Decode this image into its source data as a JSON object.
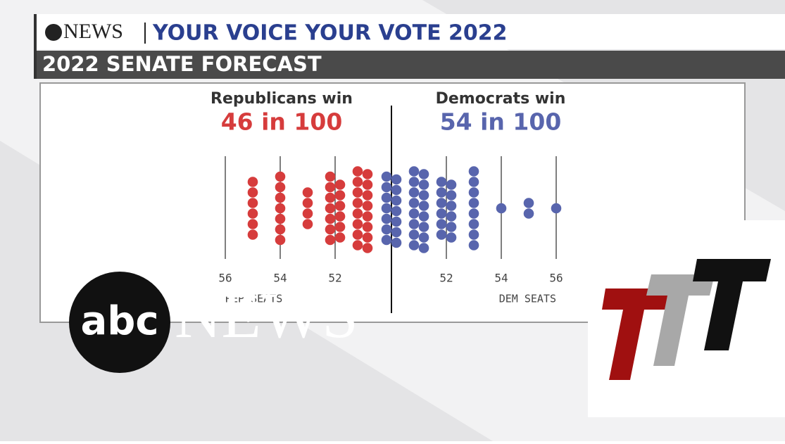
{
  "header": {
    "brand": "NEWS",
    "banner": "YOUR VOICE YOUR VOTE 2022",
    "subtitle": "2022 SENATE FORECAST"
  },
  "chart_data": {
    "type": "dotplot",
    "titles": [
      {
        "label": "Republicans win",
        "value": "46 in 100"
      },
      {
        "label": "Democrats win",
        "value": "54 in 100"
      }
    ],
    "categories": [
      "56",
      null,
      "54",
      null,
      "52",
      null,
      null,
      null,
      "52",
      null,
      "54",
      null,
      "56"
    ],
    "side_labels": [
      "REP SEATS",
      "DEM SEATS"
    ],
    "series": [
      {
        "name": "Republicans",
        "color": "#d63c3c",
        "values": [
          null,
          6,
          7,
          4,
          13,
          16,
          null,
          null,
          null,
          null,
          null,
          null,
          null
        ]
      },
      {
        "name": "Democrats",
        "color": "#5865ad",
        "values": [
          null,
          null,
          null,
          null,
          null,
          null,
          14,
          16,
          12,
          8,
          1,
          2,
          1
        ]
      }
    ]
  },
  "logos": {
    "abc": "abc",
    "news": "NEWS"
  }
}
